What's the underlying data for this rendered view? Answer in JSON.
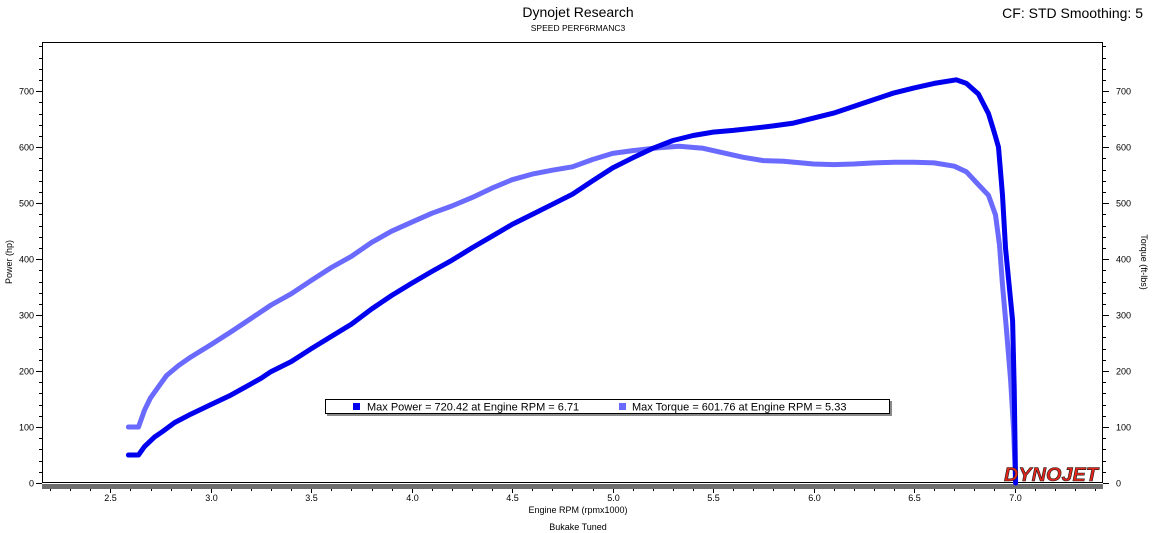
{
  "logo": {
    "text": "DYNOJET",
    "color": "#e3261c"
  },
  "chart_data": {
    "type": "line",
    "title": "Dynojet Research",
    "subtitle": "SPEED PERF6RMANC3",
    "annotation": "CF: STD Smoothing: 5",
    "caption": "Bukake Tuned",
    "xlabel": "Engine RPM (rpmx1000)",
    "ylabel": "Power (hp)",
    "y2label": "Torque (ft-lbs)",
    "xlim": [
      2.16,
      7.44
    ],
    "ylim": [
      0,
      788
    ],
    "y2lim": [
      0,
      788
    ],
    "grid": false,
    "xticks": [
      "2.5",
      "3.0",
      "3.5",
      "4.0",
      "4.5",
      "5.0",
      "5.5",
      "6.0",
      "6.5",
      "7.0"
    ],
    "yticks": [
      "0",
      "100",
      "200",
      "300",
      "400",
      "500",
      "600",
      "700"
    ],
    "y2ticks": [
      "0",
      "100",
      "200",
      "300",
      "400",
      "500",
      "600",
      "700"
    ],
    "legend": {
      "position": "bottom-center"
    },
    "series": [
      {
        "name": "Max Power = 720.42 at Engine RPM = 6.71",
        "color": "#0000ee",
        "right_axis": false,
        "x": [
          2.59,
          2.64,
          2.67,
          2.72,
          2.76,
          2.82,
          2.9,
          3.0,
          3.1,
          3.2,
          3.25,
          3.3,
          3.4,
          3.5,
          3.6,
          3.7,
          3.8,
          3.9,
          4.0,
          4.1,
          4.2,
          4.3,
          4.4,
          4.5,
          4.6,
          4.7,
          4.8,
          4.9,
          5.0,
          5.1,
          5.2,
          5.3,
          5.4,
          5.5,
          5.6,
          5.7,
          5.8,
          5.9,
          6.0,
          6.1,
          6.2,
          6.3,
          6.4,
          6.5,
          6.6,
          6.71,
          6.76,
          6.82,
          6.87,
          6.9,
          6.92,
          6.94,
          6.955,
          6.975,
          6.99,
          6.998,
          7.005
        ],
        "y": [
          50,
          50,
          65,
          82,
          92,
          108,
          123,
          140,
          157,
          177,
          187,
          199,
          217,
          240,
          262,
          284,
          311,
          335,
          357,
          378,
          398,
          420,
          441,
          462,
          480,
          498,
          516,
          540,
          563,
          581,
          598,
          612,
          621,
          627,
          630,
          634,
          638,
          643,
          652,
          661,
          673,
          685,
          697,
          706,
          714,
          720.42,
          714,
          695,
          660,
          625,
          600,
          514,
          420,
          345,
          290,
          170,
          0
        ]
      },
      {
        "name": "Max Torque = 601.76 at Engine RPM = 5.33",
        "color": "#6a6aff",
        "right_axis": true,
        "x": [
          2.59,
          2.64,
          2.67,
          2.7,
          2.74,
          2.78,
          2.84,
          2.9,
          3.0,
          3.1,
          3.2,
          3.3,
          3.4,
          3.5,
          3.6,
          3.7,
          3.8,
          3.9,
          4.0,
          4.1,
          4.2,
          4.3,
          4.4,
          4.5,
          4.6,
          4.7,
          4.8,
          4.9,
          5.0,
          5.1,
          5.2,
          5.33,
          5.45,
          5.55,
          5.65,
          5.75,
          5.85,
          6.0,
          6.1,
          6.2,
          6.3,
          6.4,
          6.5,
          6.6,
          6.7,
          6.76,
          6.81,
          6.87,
          6.905,
          6.925,
          6.94,
          6.96,
          6.98,
          6.995,
          7.005
        ],
        "y": [
          100,
          100,
          130,
          152,
          172,
          192,
          210,
          225,
          247,
          270,
          294,
          318,
          338,
          362,
          385,
          405,
          430,
          450,
          466,
          482,
          495,
          510,
          527,
          542,
          552,
          559,
          565,
          578,
          589,
          594,
          598,
          601.76,
          598,
          590,
          582,
          576,
          575,
          570,
          569,
          570,
          572,
          573,
          573,
          572,
          566,
          556,
          537,
          514,
          479,
          425,
          354,
          273,
          184,
          95,
          0
        ]
      }
    ]
  }
}
